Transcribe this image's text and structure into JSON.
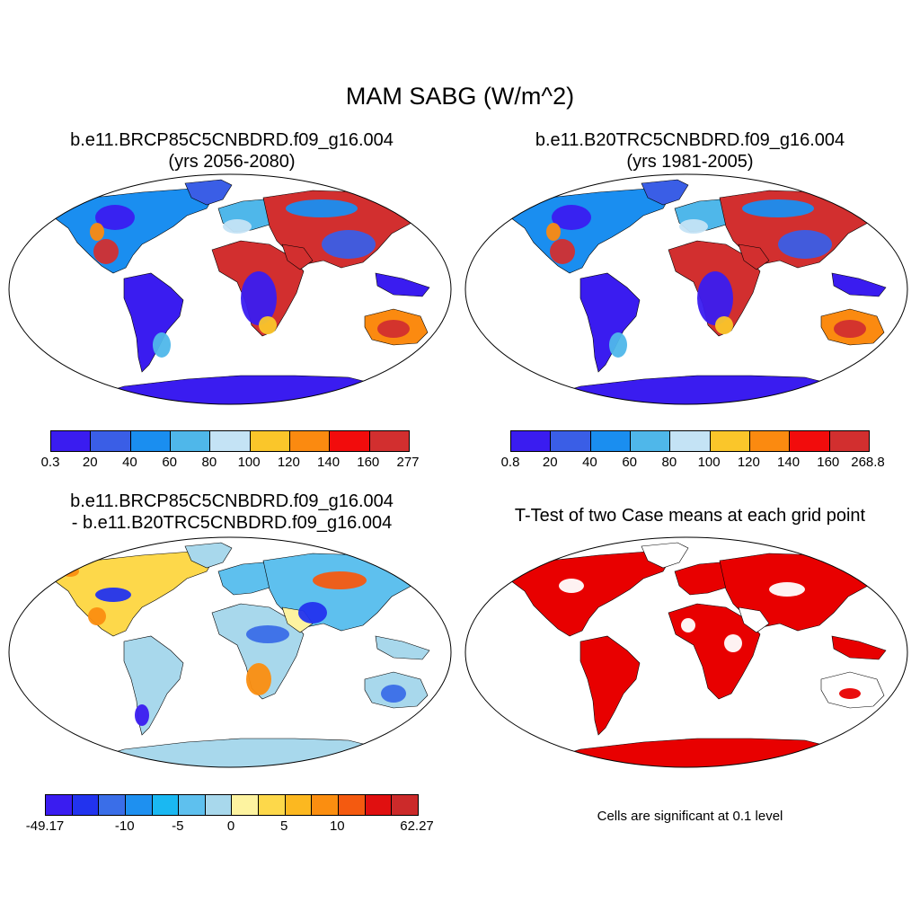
{
  "main_title": "MAM SABG (W/m^2)",
  "panels": [
    {
      "title_line1": "b.e11.BRCP85C5CNBDRD.f09_g16.004",
      "title_line2": "(yrs 2056-2080)",
      "colorbar": {
        "colors": [
          "#3a1cf0",
          "#3a5ee6",
          "#1a8ef0",
          "#4fb7ea",
          "#c4e3f5",
          "#fac62a",
          "#fb8a10",
          "#f20c0c",
          "#d22f2f"
        ],
        "labels": [
          "0.3",
          "20",
          "40",
          "60",
          "80",
          "100",
          "120",
          "140",
          "160",
          "277"
        ]
      }
    },
    {
      "title_line1": "b.e11.B20TRC5CNBDRD.f09_g16.004",
      "title_line2": "(yrs 1981-2005)",
      "colorbar": {
        "colors": [
          "#3a1cf0",
          "#3a5ee6",
          "#1a8ef0",
          "#4fb7ea",
          "#c4e3f5",
          "#fac62a",
          "#fb8a10",
          "#f20c0c",
          "#d22f2f"
        ],
        "labels": [
          "0.8",
          "20",
          "40",
          "60",
          "80",
          "100",
          "120",
          "140",
          "160",
          "268.8"
        ]
      }
    },
    {
      "title_line1": "b.e11.BRCP85C5CNBDRD.f09_g16.004",
      "title_line2": "- b.e11.B20TRC5CNBDRD.f09_g16.004",
      "colorbar": {
        "colors": [
          "#3a1cf0",
          "#2233ee",
          "#3a6ee8",
          "#1e90f0",
          "#1ab8f2",
          "#5ec0ee",
          "#a8d8ec",
          "#fdf3a0",
          "#fdd84a",
          "#fcb820",
          "#fb8e10",
          "#f45a10",
          "#e01010",
          "#cc2a2a"
        ],
        "labels": [
          "-49.17",
          "-10",
          "-5",
          "0",
          "5",
          "10",
          "62.27"
        ]
      }
    },
    {
      "title_line1": "T-Test of two Case means at each grid point",
      "note": "Cells are significant at 0.1 level"
    }
  ]
}
